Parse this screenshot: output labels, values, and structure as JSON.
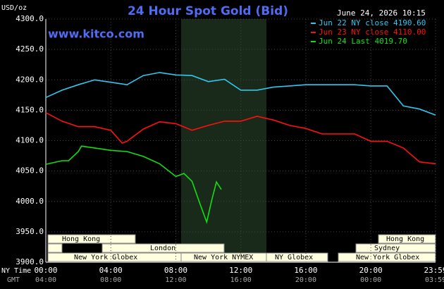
{
  "chart_data": {
    "type": "line",
    "title": "24 Hour Spot Gold (Bid)",
    "y_label": "USD/oz",
    "source": "www.kitco.com",
    "timestamp": "June 24, 2026 10:15",
    "x_label": "NY Time",
    "x2_label": "GMT",
    "xlim": [
      0,
      23.983
    ],
    "xticks": [
      {
        "value": 0,
        "label": "00:00"
      },
      {
        "value": 4,
        "label": "04:00"
      },
      {
        "value": 8,
        "label": "08:00"
      },
      {
        "value": 12,
        "label": "12:00"
      },
      {
        "value": 16,
        "label": "16:00"
      },
      {
        "value": 20,
        "label": "20:00"
      },
      {
        "value": 23.983,
        "label": "23:59"
      }
    ],
    "x2ticks": [
      {
        "value": 0,
        "label": "04:00"
      },
      {
        "value": 4,
        "label": "08:00"
      },
      {
        "value": 8,
        "label": "12:00"
      },
      {
        "value": 12,
        "label": "16:00"
      },
      {
        "value": 16,
        "label": "20:00"
      },
      {
        "value": 20,
        "label": "00:00"
      },
      {
        "value": 23.983,
        "label": "03:59"
      }
    ],
    "ylim": [
      3900,
      4300
    ],
    "yticks": [
      {
        "value": 3900,
        "label": "3900.0"
      },
      {
        "value": 3950,
        "label": "3950.0"
      },
      {
        "value": 4000,
        "label": "4000.0"
      },
      {
        "value": 4050,
        "label": "4050.0"
      },
      {
        "value": 4100,
        "label": "4100.0"
      },
      {
        "value": 4150,
        "label": "4150.0"
      },
      {
        "value": 4200,
        "label": "4200.0"
      },
      {
        "value": 4250,
        "label": "4250.0"
      },
      {
        "value": 4300,
        "label": "4300.0"
      }
    ],
    "grid": true,
    "series": [
      {
        "name": "Jun 22 NY close 4190.60",
        "color": "#2ec8f0",
        "x": [
          0,
          1,
          2,
          3,
          4,
          5,
          6,
          7,
          8,
          9,
          10,
          11,
          12,
          13,
          14,
          15,
          16,
          17,
          18,
          19,
          20,
          21,
          22,
          23,
          23.983
        ],
        "values": [
          4171,
          4183,
          4192,
          4200,
          4196,
          4192,
          4207,
          4212,
          4208,
          4207,
          4197,
          4201,
          4183,
          4183,
          4188,
          4190,
          4192,
          4192,
          4192,
          4192,
          4190,
          4190,
          4157,
          4152,
          4142
        ]
      },
      {
        "name": "Jun 23 NY close 4110.00",
        "color": "#ff1010",
        "x": [
          0,
          1,
          2,
          3,
          4,
          4.7,
          5,
          6,
          7,
          8,
          9,
          10,
          11,
          12,
          13,
          14,
          15,
          16,
          17,
          18,
          19,
          20,
          21,
          22,
          23,
          23.983
        ],
        "values": [
          4146,
          4132,
          4123,
          4123,
          4117,
          4096,
          4099,
          4119,
          4131,
          4128,
          4117,
          4125,
          4132,
          4132,
          4140,
          4134,
          4125,
          4120,
          4111,
          4111,
          4111,
          4099,
          4099,
          4088,
          4065,
          4062
        ]
      },
      {
        "name": "Jun 24 Last 4019.70",
        "color": "#10e010",
        "x": [
          0,
          1,
          1.4,
          2,
          2.2,
          3,
          4,
          5,
          6,
          7,
          8,
          8.5,
          9,
          9.5,
          9.9,
          10.2,
          10.5,
          10.8
        ],
        "values": [
          4061,
          4067,
          4067,
          4082,
          4091,
          4088,
          4084,
          4082,
          4074,
          4062,
          4041,
          4046,
          4033,
          3995,
          3966,
          4001,
          4032,
          4019.7
        ]
      }
    ],
    "sessions": [
      "Hong Kong",
      "London",
      "New York Globex",
      "New York NYMEX",
      "NY Globex",
      "Hong Kong",
      "Sydney",
      "New York Globex"
    ]
  }
}
